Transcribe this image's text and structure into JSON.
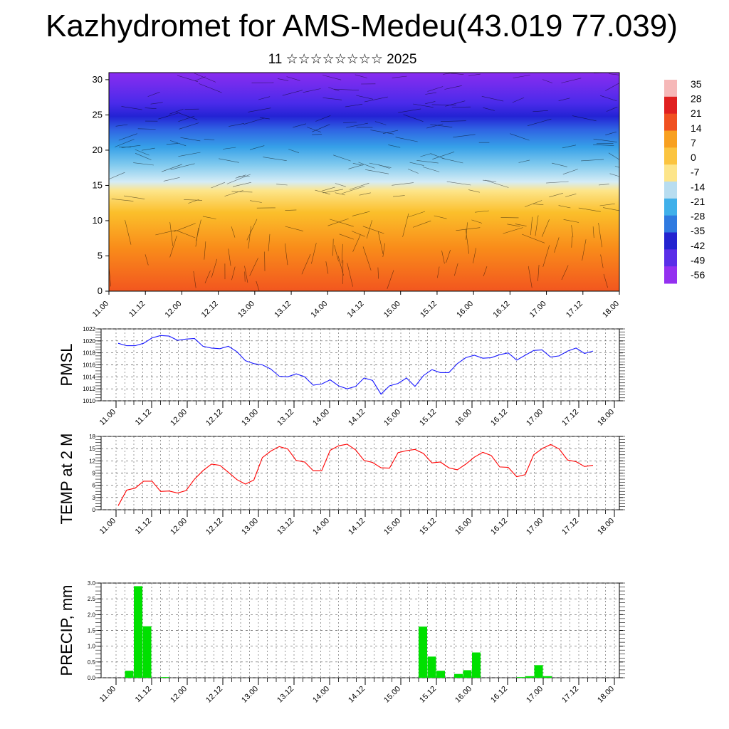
{
  "title": "Kazhydromet for AMS-Medeu(43.019 77.039)",
  "subtitle": "11 ☆☆☆☆☆☆☆☆ 2025",
  "colors": {
    "pmsl_line": "#1a1aff",
    "temp_line": "#ff0000",
    "precip_bar": "#00e000",
    "frame": "#000000"
  },
  "chart_data": [
    {
      "type": "heatmap",
      "name": "cross-section",
      "y_ticks": [
        "0",
        "5",
        "10",
        "15",
        "20",
        "25",
        "30"
      ],
      "ylim": [
        0,
        31
      ],
      "x_ticks": [
        "11.00",
        "11.12",
        "12.00",
        "12.12",
        "13.00",
        "13.12",
        "14.00",
        "14.12",
        "15.00",
        "15.12",
        "16.00",
        "16.12",
        "17.00",
        "17.12",
        "18.00"
      ],
      "colorbar_labels": [
        "35",
        "28",
        "21",
        "14",
        "7",
        "0",
        "-7",
        "-14",
        "-21",
        "-28",
        "-35",
        "-42",
        "-49",
        "-56"
      ],
      "colorbar_range": [
        -60,
        38
      ],
      "overlay": "wind barbs"
    },
    {
      "type": "line",
      "name": "pmsl",
      "ylabel": "PMSL",
      "ylim": [
        1010,
        1022
      ],
      "y_ticks": [
        "1010",
        "1012",
        "1014",
        "1016",
        "1018",
        "1020",
        "1022"
      ],
      "x_ticks": [
        "11.00",
        "11.12",
        "12.00",
        "12.12",
        "13.00",
        "13.12",
        "14.00",
        "14.12",
        "15.00",
        "15.12",
        "16.00",
        "16.12",
        "17.00",
        "17.12",
        "18.00"
      ],
      "values": [
        1019.6,
        1019.2,
        1019.2,
        1019.6,
        1020.5,
        1020.9,
        1020.8,
        1020.1,
        1020.3,
        1020.4,
        1019.1,
        1018.8,
        1018.7,
        1019.1,
        1018.2,
        1016.7,
        1016.2,
        1016.0,
        1015.3,
        1014.1,
        1014.0,
        1014.5,
        1014.0,
        1012.6,
        1012.8,
        1013.5,
        1012.5,
        1012.0,
        1012.4,
        1013.8,
        1013.4,
        1011.1,
        1012.5,
        1012.9,
        1013.8,
        1012.4,
        1014.2,
        1015.2,
        1014.7,
        1014.7,
        1016.2,
        1017.2,
        1017.6,
        1017.1,
        1017.2,
        1017.7,
        1018.0,
        1016.8,
        1017.6,
        1018.4,
        1018.5,
        1017.3,
        1017.5,
        1018.3,
        1018.8,
        1017.9,
        1018.3
      ]
    },
    {
      "type": "line",
      "name": "temp",
      "ylabel": "TEMP at 2 M",
      "ylim": [
        0,
        18
      ],
      "y_ticks": [
        "0",
        "3",
        "6",
        "9",
        "12",
        "15",
        "18"
      ],
      "x_ticks": [
        "11.00",
        "11.12",
        "12.00",
        "12.12",
        "13.00",
        "13.12",
        "14.00",
        "14.12",
        "15.00",
        "15.12",
        "16.00",
        "16.12",
        "17.00",
        "17.12",
        "18.00"
      ],
      "values": [
        1.0,
        4.8,
        5.3,
        7.0,
        7.0,
        4.5,
        4.6,
        4.1,
        4.7,
        7.5,
        9.6,
        11.2,
        10.9,
        9.2,
        7.4,
        6.3,
        7.3,
        12.8,
        14.4,
        15.5,
        14.9,
        12.1,
        11.7,
        9.6,
        9.6,
        14.6,
        15.7,
        16.1,
        14.7,
        12.1,
        11.6,
        10.3,
        10.2,
        14.0,
        14.5,
        14.8,
        13.8,
        11.5,
        11.7,
        10.3,
        9.8,
        11.2,
        12.9,
        14.1,
        13.3,
        10.5,
        10.4,
        8.1,
        8.6,
        13.5,
        15.0,
        16.0,
        14.9,
        12.2,
        11.8,
        10.6,
        10.9
      ]
    },
    {
      "type": "bar",
      "name": "precip",
      "ylabel": "PRECIP, mm",
      "ylim": [
        0,
        3.0
      ],
      "y_ticks": [
        "0.0",
        "0.5",
        "1.0",
        "1.5",
        "2.0",
        "2.5",
        "3.0"
      ],
      "x_ticks": [
        "11.00",
        "11.12",
        "12.00",
        "12.12",
        "13.00",
        "13.12",
        "14.00",
        "14.12",
        "15.00",
        "15.12",
        "16.00",
        "16.12",
        "17.00",
        "17.12",
        "18.00"
      ],
      "values": [
        0,
        0.22,
        2.9,
        1.63,
        0,
        0.02,
        0,
        0,
        0,
        0,
        0,
        0,
        0,
        0,
        0,
        0,
        0,
        0,
        0,
        0,
        0,
        0,
        0,
        0,
        0,
        0,
        0,
        0,
        0,
        0,
        0,
        0,
        0,
        0,
        1.62,
        0.67,
        0.22,
        0,
        0.12,
        0.24,
        0.8,
        0,
        0,
        0,
        0,
        0.02,
        0.05,
        0.4,
        0.05,
        0,
        0,
        0,
        0,
        0,
        0,
        0,
        0
      ]
    }
  ]
}
